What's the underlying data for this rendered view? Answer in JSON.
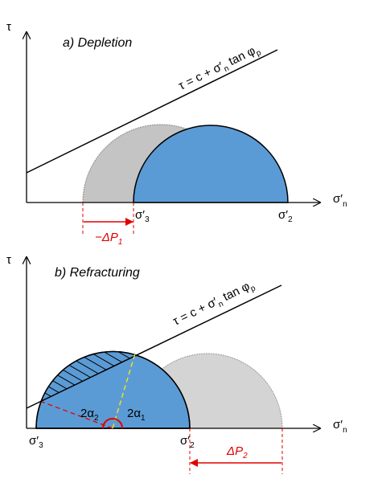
{
  "panel_a": {
    "y_axis_label": "τ",
    "title": "a) Depletion",
    "envelope_label": [
      "τ = c + σ′",
      "n",
      " tan φ",
      "p"
    ],
    "x_axis_label": [
      "σ′",
      "n"
    ],
    "sigma3_label": [
      "σ′",
      "3"
    ],
    "sigma2_label": [
      "σ′",
      "2"
    ],
    "pressure_change_label": [
      "−ΔP",
      "1"
    ]
  },
  "panel_b": {
    "y_axis_label": "τ",
    "title": "b) Refracturing",
    "envelope_label": [
      "τ = c + σ′",
      "n",
      " tan φ",
      "p"
    ],
    "x_axis_label": [
      "σ′",
      "n"
    ],
    "sigma3_label": [
      "σ′",
      "3"
    ],
    "sigma2_label": [
      "σ′",
      "2"
    ],
    "angle2_label": [
      "2α",
      "2"
    ],
    "angle1_label": [
      "2α",
      "1"
    ],
    "pressure_change_label": [
      "ΔP",
      "2"
    ]
  }
}
